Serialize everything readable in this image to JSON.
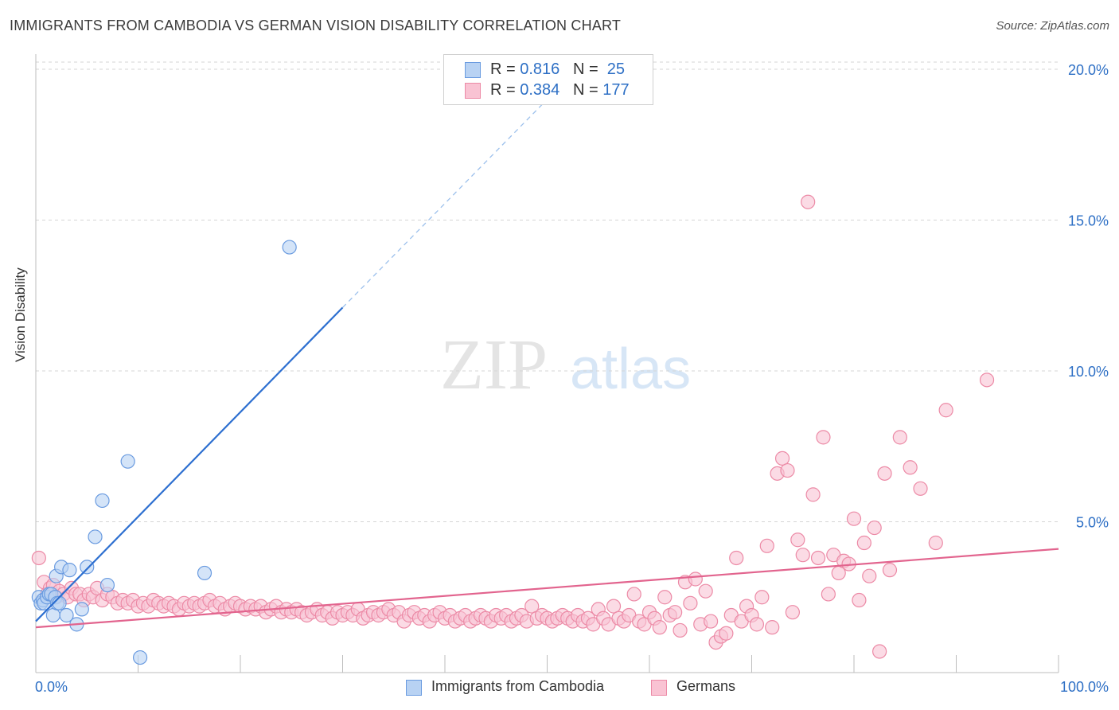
{
  "header": {
    "title": "IMMIGRANTS FROM CAMBODIA VS GERMAN VISION DISABILITY CORRELATION CHART",
    "source": "Source: ZipAtlas.com"
  },
  "watermark": {
    "zip": "ZIP",
    "atlas": "atlas"
  },
  "colors": {
    "blue_fill": "#b8d2f3",
    "blue_stroke": "#6a9be0",
    "blue_line": "#2d6fd0",
    "pink_fill": "#f9c3d3",
    "pink_stroke": "#ec8aa6",
    "pink_line": "#e2648e",
    "axis_label": "#2d6fc5",
    "grid": "#d6d6d6"
  },
  "legend_top": {
    "rows": [
      {
        "r_label": "R = ",
        "r_value": "0.816",
        "n_label": "N = ",
        "n_value": "25"
      },
      {
        "r_label": "R = ",
        "r_value": "0.384",
        "n_label": "N = ",
        "n_value": "177"
      }
    ]
  },
  "legend_bottom": {
    "items": [
      "Immigrants from Cambodia",
      "Germans"
    ]
  },
  "chart_data": {
    "type": "scatter",
    "title": "IMMIGRANTS FROM CAMBODIA VS GERMAN VISION DISABILITY CORRELATION CHART",
    "xlabel": "",
    "ylabel": "Vision Disability",
    "xlim": [
      0,
      100
    ],
    "ylim": [
      0,
      20.5
    ],
    "x_tick_labels": [
      "0.0%",
      "100.0%"
    ],
    "y_ticks": [
      5,
      10,
      15,
      20
    ],
    "y_tick_labels": [
      "5.0%",
      "10.0%",
      "15.0%",
      "20.0%"
    ],
    "grid": true,
    "legend_position": "bottom",
    "series": [
      {
        "name": "Immigrants from Cambodia",
        "R": 0.816,
        "N": 25,
        "trend": {
          "x0": 0,
          "y0": 1.7,
          "x1": 30,
          "y1": 12.1,
          "dash_to_x": 50,
          "dash_to_y": 19.0
        },
        "points": [
          [
            0.3,
            2.5
          ],
          [
            0.5,
            2.3
          ],
          [
            0.7,
            2.4
          ],
          [
            0.8,
            2.3
          ],
          [
            1.1,
            2.5
          ],
          [
            1.3,
            2.6
          ],
          [
            1.5,
            2.6
          ],
          [
            1.7,
            1.9
          ],
          [
            1.9,
            2.5
          ],
          [
            2.0,
            3.2
          ],
          [
            2.1,
            2.3
          ],
          [
            2.3,
            2.3
          ],
          [
            2.5,
            3.5
          ],
          [
            3.0,
            1.9
          ],
          [
            3.3,
            3.4
          ],
          [
            4.0,
            1.6
          ],
          [
            4.5,
            2.1
          ],
          [
            5.0,
            3.5
          ],
          [
            5.8,
            4.5
          ],
          [
            6.5,
            5.7
          ],
          [
            7.0,
            2.9
          ],
          [
            9.0,
            7.0
          ],
          [
            10.2,
            0.5
          ],
          [
            16.5,
            3.3
          ],
          [
            24.8,
            14.1
          ]
        ]
      },
      {
        "name": "Germans",
        "R": 0.384,
        "N": 177,
        "trend": {
          "x0": 0,
          "y0": 1.5,
          "x1": 100,
          "y1": 4.1
        },
        "points": [
          [
            0.3,
            3.8
          ],
          [
            0.8,
            3.0
          ],
          [
            1.1,
            2.6
          ],
          [
            1.4,
            2.8
          ],
          [
            1.7,
            2.9
          ],
          [
            2.0,
            2.5
          ],
          [
            2.3,
            2.7
          ],
          [
            2.7,
            2.6
          ],
          [
            3.1,
            2.5
          ],
          [
            3.5,
            2.8
          ],
          [
            3.9,
            2.6
          ],
          [
            4.3,
            2.6
          ],
          [
            4.7,
            2.4
          ],
          [
            5.2,
            2.6
          ],
          [
            5.6,
            2.5
          ],
          [
            6.0,
            2.8
          ],
          [
            6.5,
            2.4
          ],
          [
            7.0,
            2.6
          ],
          [
            7.5,
            2.5
          ],
          [
            8.0,
            2.3
          ],
          [
            8.5,
            2.4
          ],
          [
            9.0,
            2.3
          ],
          [
            9.5,
            2.4
          ],
          [
            10.0,
            2.2
          ],
          [
            10.5,
            2.3
          ],
          [
            11.0,
            2.2
          ],
          [
            11.5,
            2.4
          ],
          [
            12.0,
            2.3
          ],
          [
            12.5,
            2.2
          ],
          [
            13.0,
            2.3
          ],
          [
            13.5,
            2.2
          ],
          [
            14.0,
            2.1
          ],
          [
            14.5,
            2.3
          ],
          [
            15.0,
            2.2
          ],
          [
            15.5,
            2.3
          ],
          [
            16.0,
            2.2
          ],
          [
            16.5,
            2.3
          ],
          [
            17.0,
            2.4
          ],
          [
            17.5,
            2.2
          ],
          [
            18.0,
            2.3
          ],
          [
            18.5,
            2.1
          ],
          [
            19.0,
            2.2
          ],
          [
            19.5,
            2.3
          ],
          [
            20.0,
            2.2
          ],
          [
            20.5,
            2.1
          ],
          [
            21.0,
            2.2
          ],
          [
            21.5,
            2.1
          ],
          [
            22.0,
            2.2
          ],
          [
            22.5,
            2.0
          ],
          [
            23.0,
            2.1
          ],
          [
            23.5,
            2.2
          ],
          [
            24.0,
            2.0
          ],
          [
            24.5,
            2.1
          ],
          [
            25.0,
            2.0
          ],
          [
            25.5,
            2.1
          ],
          [
            26.0,
            2.0
          ],
          [
            26.5,
            1.9
          ],
          [
            27.0,
            2.0
          ],
          [
            27.5,
            2.1
          ],
          [
            28.0,
            1.9
          ],
          [
            28.5,
            2.0
          ],
          [
            29.0,
            1.8
          ],
          [
            29.5,
            2.0
          ],
          [
            30.0,
            1.9
          ],
          [
            30.5,
            2.0
          ],
          [
            31.0,
            1.9
          ],
          [
            31.5,
            2.1
          ],
          [
            32.0,
            1.8
          ],
          [
            32.5,
            1.9
          ],
          [
            33.0,
            2.0
          ],
          [
            33.5,
            1.9
          ],
          [
            34.0,
            2.0
          ],
          [
            34.5,
            2.1
          ],
          [
            35.0,
            1.9
          ],
          [
            35.5,
            2.0
          ],
          [
            36.0,
            1.7
          ],
          [
            36.5,
            1.9
          ],
          [
            37.0,
            2.0
          ],
          [
            37.5,
            1.8
          ],
          [
            38.0,
            1.9
          ],
          [
            38.5,
            1.7
          ],
          [
            39.0,
            1.9
          ],
          [
            39.5,
            2.0
          ],
          [
            40.0,
            1.8
          ],
          [
            40.5,
            1.9
          ],
          [
            41.0,
            1.7
          ],
          [
            41.5,
            1.8
          ],
          [
            42.0,
            1.9
          ],
          [
            42.5,
            1.7
          ],
          [
            43.0,
            1.8
          ],
          [
            43.5,
            1.9
          ],
          [
            44.0,
            1.8
          ],
          [
            44.5,
            1.7
          ],
          [
            45.0,
            1.9
          ],
          [
            45.5,
            1.8
          ],
          [
            46.0,
            1.9
          ],
          [
            46.5,
            1.7
          ],
          [
            47.0,
            1.8
          ],
          [
            47.5,
            1.9
          ],
          [
            48.0,
            1.7
          ],
          [
            48.5,
            2.2
          ],
          [
            49.0,
            1.8
          ],
          [
            49.5,
            1.9
          ],
          [
            50.0,
            1.8
          ],
          [
            50.5,
            1.7
          ],
          [
            51.0,
            1.8
          ],
          [
            51.5,
            1.9
          ],
          [
            52.0,
            1.8
          ],
          [
            52.5,
            1.7
          ],
          [
            53.0,
            1.9
          ],
          [
            53.5,
            1.7
          ],
          [
            54.0,
            1.8
          ],
          [
            54.5,
            1.6
          ],
          [
            55.0,
            2.1
          ],
          [
            55.5,
            1.8
          ],
          [
            56.0,
            1.6
          ],
          [
            56.5,
            2.2
          ],
          [
            57.0,
            1.8
          ],
          [
            57.5,
            1.7
          ],
          [
            58.0,
            1.9
          ],
          [
            58.5,
            2.6
          ],
          [
            59.0,
            1.7
          ],
          [
            59.5,
            1.6
          ],
          [
            60.0,
            2.0
          ],
          [
            60.5,
            1.8
          ],
          [
            61.0,
            1.5
          ],
          [
            61.5,
            2.5
          ],
          [
            62.0,
            1.9
          ],
          [
            62.5,
            2.0
          ],
          [
            63.0,
            1.4
          ],
          [
            63.5,
            3.0
          ],
          [
            64.0,
            2.3
          ],
          [
            64.5,
            3.1
          ],
          [
            65.0,
            1.6
          ],
          [
            65.5,
            2.7
          ],
          [
            66.0,
            1.7
          ],
          [
            66.5,
            1.0
          ],
          [
            67.0,
            1.2
          ],
          [
            67.5,
            1.3
          ],
          [
            68.0,
            1.9
          ],
          [
            68.5,
            3.8
          ],
          [
            69.0,
            1.7
          ],
          [
            69.5,
            2.2
          ],
          [
            70.0,
            1.9
          ],
          [
            70.5,
            1.6
          ],
          [
            71.0,
            2.5
          ],
          [
            71.5,
            4.2
          ],
          [
            72.0,
            1.5
          ],
          [
            72.5,
            6.6
          ],
          [
            73.0,
            7.1
          ],
          [
            73.5,
            6.7
          ],
          [
            74.0,
            2.0
          ],
          [
            74.5,
            4.4
          ],
          [
            75.0,
            3.9
          ],
          [
            75.5,
            15.6
          ],
          [
            76.0,
            5.9
          ],
          [
            76.5,
            3.8
          ],
          [
            77.0,
            7.8
          ],
          [
            77.5,
            2.6
          ],
          [
            78.0,
            3.9
          ],
          [
            78.5,
            3.3
          ],
          [
            79.0,
            3.7
          ],
          [
            79.5,
            3.6
          ],
          [
            80.0,
            5.1
          ],
          [
            80.5,
            2.4
          ],
          [
            81.0,
            4.3
          ],
          [
            81.5,
            3.2
          ],
          [
            82.0,
            4.8
          ],
          [
            82.5,
            0.7
          ],
          [
            83.0,
            6.6
          ],
          [
            83.5,
            3.4
          ],
          [
            84.5,
            7.8
          ],
          [
            85.5,
            6.8
          ],
          [
            86.5,
            6.1
          ],
          [
            88.0,
            4.3
          ],
          [
            89.0,
            8.7
          ],
          [
            93.0,
            9.7
          ]
        ]
      }
    ]
  }
}
